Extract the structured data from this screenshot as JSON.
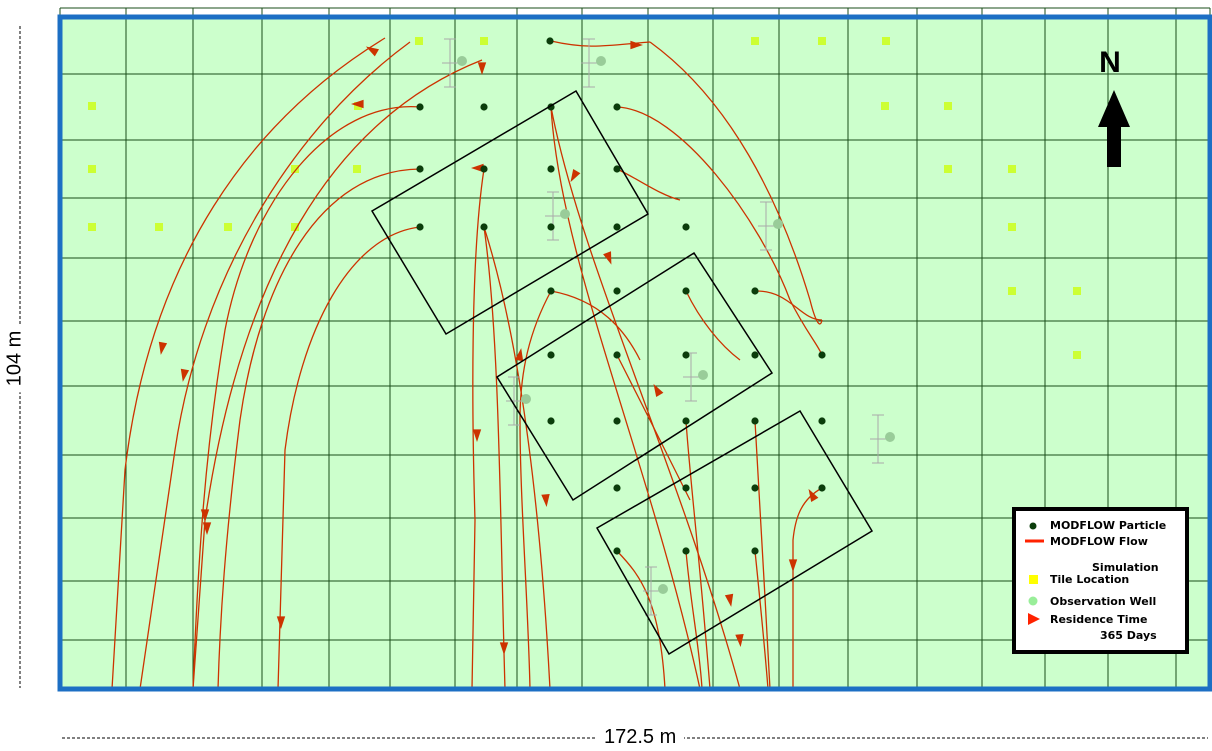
{
  "map": {
    "north_label": "N",
    "width_label": "172.5 m",
    "height_label": "104 m",
    "colors": {
      "background": "#ccffcc",
      "grid": "#1a4d1a",
      "frame": "#1c6fc4",
      "particle": "#0b3d0b",
      "flow": "#cc3300",
      "tile": "#ccff33",
      "well": "#99cc99",
      "well_bar": "#aaaaaa"
    }
  },
  "legend": {
    "particle": "MODFLOW Particle",
    "flow_line1": "MODFLOW Flow",
    "flow_line2": "Simulation",
    "tile": "Tile Location",
    "well": "Observation Well",
    "residence_line1": "Residence Time",
    "residence_line2": "365 Days"
  }
}
